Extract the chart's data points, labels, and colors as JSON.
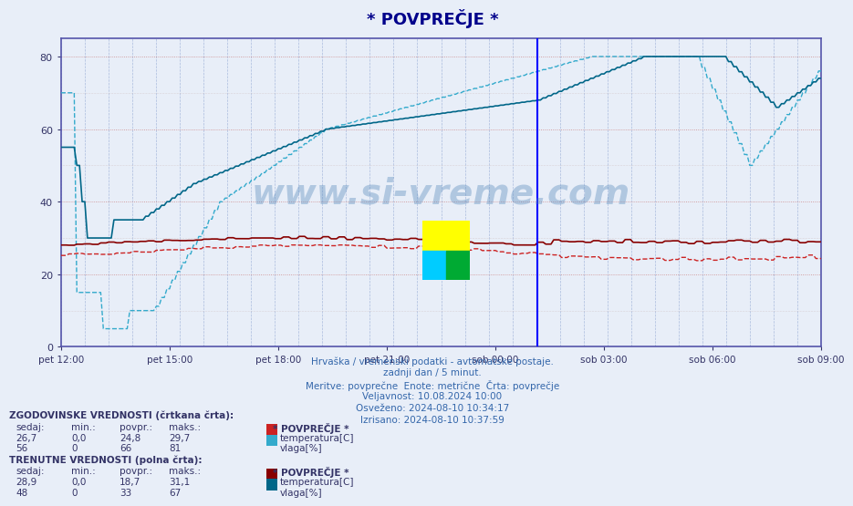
{
  "title": "* POVPREČJE *",
  "title_color": "#00008B",
  "bg_color": "#E8EEF8",
  "plot_bg": "#E8EEF8",
  "ylim": [
    0,
    85
  ],
  "yticks": [
    0,
    20,
    40,
    60,
    80
  ],
  "xtick_labels": [
    "pet 12:00",
    "pet 15:00",
    "pet 18:00",
    "pet 21:00",
    "sob 00:00",
    "sob 03:00",
    "sob 06:00",
    "sob 09:00"
  ],
  "watermark": "www.si-vreme.com",
  "watermark_color": "#5588BB",
  "info_lines": [
    "Hrvaška / vremenski podatki - avtomatske postaje.",
    "zadnji dan / 5 minut.",
    "Meritve: povprečne  Enote: metrične  Črta: povprečje",
    "Veljavnost: 10.08.2024 10:00",
    "Osveženo: 2024-08-10 10:34:17",
    "Izrisano: 2024-08-10 10:37:59"
  ],
  "legend_hist_header": "ZGODOVINSKE VREDNOSTI (črtkana črta):",
  "legend_curr_header": "TRENUTNE VREDNOSTI (polna črta):",
  "legend_cols": [
    "sedaj:",
    "min.:",
    "povpr.:",
    "maks.:"
  ],
  "hist_temp_vals": [
    "26,7",
    "0,0",
    "24,8",
    "29,7"
  ],
  "hist_hum_vals": [
    "56",
    "0",
    "66",
    "81"
  ],
  "curr_temp_vals": [
    "28,9",
    "0,0",
    "18,7",
    "31,1"
  ],
  "curr_hum_vals": [
    "48",
    "0",
    "33",
    "67"
  ],
  "legend_label_temp": "temperatura[C]",
  "legend_label_hum": "vlaga[%]",
  "legend_label_header": "* POVPREČJE *",
  "temp_hist_color": "#CC2222",
  "temp_curr_color": "#880000",
  "hum_hist_color": "#33AACC",
  "hum_curr_color": "#006688",
  "n_points": 288,
  "vertical_line_x": 180,
  "vertical_line_color": "#0000FF"
}
